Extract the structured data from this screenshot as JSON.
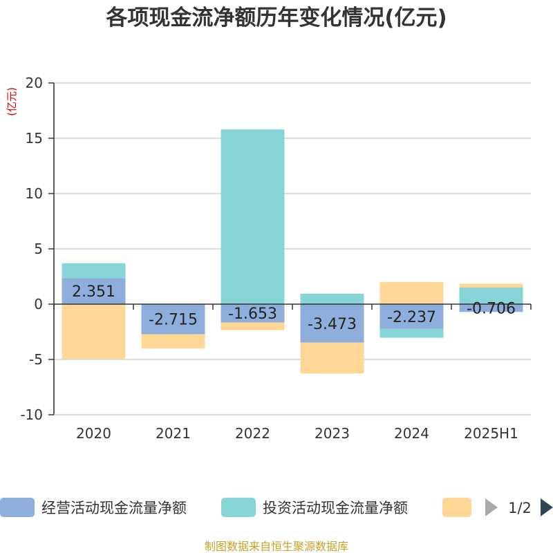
{
  "chart_data": {
    "type": "bar",
    "stacked": true,
    "title": "各项现金流净额历年变化情况(亿元)",
    "ylabel": "(亿元)",
    "ylim": [
      -10,
      20
    ],
    "yticks": [
      20,
      15,
      10,
      5,
      0,
      -5,
      -10
    ],
    "grid": true,
    "legend_position": "bottom",
    "categories": [
      "2020",
      "2021",
      "2022",
      "2023",
      "2024",
      "2025H1"
    ],
    "series": [
      {
        "name": "经营活动现金流量净额",
        "color": "#8eaedb",
        "values": [
          2.351,
          -2.715,
          -1.653,
          -3.473,
          -2.237,
          -0.706
        ],
        "labels": [
          "2.351",
          "-2.715",
          "-1.653",
          "-3.473",
          "-2.237",
          "-0.706"
        ]
      },
      {
        "name": "投资活动现金流量净额",
        "color": "#88d5d8",
        "values": [
          1.35,
          0,
          15.8,
          0.95,
          -0.8,
          1.5
        ]
      },
      {
        "name": "",
        "color": "#fed797",
        "values": [
          -4.95,
          -1.3,
          -0.7,
          -2.8,
          2.0,
          0.35
        ]
      }
    ]
  },
  "legend": {
    "pager_text": "1/2"
  },
  "source_text": "制图数据来自恒生聚源数据库"
}
